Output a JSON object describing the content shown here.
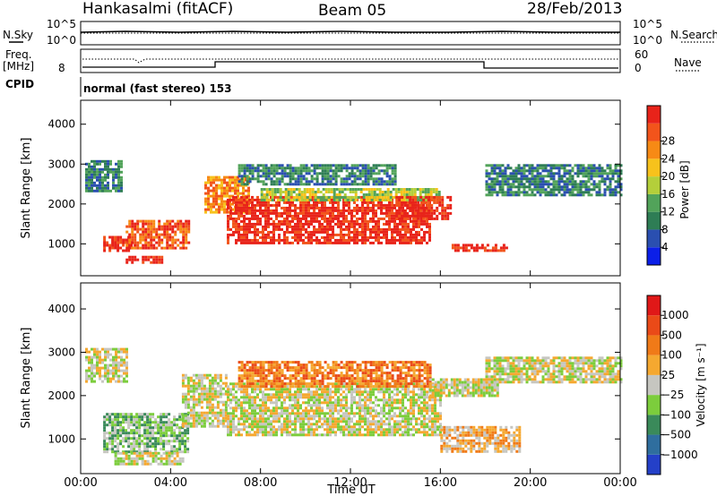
{
  "header": {
    "station": "Hankasalmi (fitACF)",
    "beam": "Beam 05",
    "date": "28/Feb/2013"
  },
  "top_panels": {
    "nsky_label": "N.Sky",
    "nsky_ticks": [
      "10^5",
      "10^0"
    ],
    "nsearch_label": "N.Search",
    "nsearch_ticks": [
      "10^5",
      "10^0"
    ],
    "freq_label": "Freq.",
    "freq_unit": "[MHz]",
    "freq_ticks": [
      "8"
    ],
    "nave_label": "Nave",
    "nave_ticks": [
      "60",
      "0"
    ],
    "cpid_label": "CPID",
    "cpid_value": "normal (fast stereo) 153"
  },
  "chart_data": [
    {
      "type": "heatmap",
      "name": "power-panel",
      "ylabel": "Slant Range [km]",
      "xlabel": "",
      "x_ticks": [
        "00:00",
        "04:00",
        "08:00",
        "12:00",
        "16:00",
        "20:00",
        "00:00"
      ],
      "y_ticks": [
        1000,
        2000,
        3000,
        4000
      ],
      "ylim": [
        200,
        4600
      ],
      "xlim_hours": [
        0,
        24
      ],
      "colorbar": {
        "label": "Power [dB]",
        "tick_labels": [
          "4",
          "8",
          "12",
          "16",
          "20",
          "24",
          "28"
        ],
        "colors": [
          "#0b1fe8",
          "#2a4fb0",
          "#2e7d55",
          "#52a35a",
          "#b4cf3a",
          "#f7c21c",
          "#f78a15",
          "#f2541b",
          "#e8231a"
        ]
      },
      "echo_regions": [
        {
          "t0": 0.2,
          "t1": 1.8,
          "r0": 2300,
          "r1": 3100,
          "level": 2
        },
        {
          "t0": 1.0,
          "t1": 2.3,
          "r0": 800,
          "r1": 1200,
          "level": 8
        },
        {
          "t0": 2.0,
          "t1": 4.8,
          "r0": 900,
          "r1": 1600,
          "level": 7
        },
        {
          "t0": 2.0,
          "t1": 3.6,
          "r0": 550,
          "r1": 700,
          "level": 8
        },
        {
          "t0": 5.5,
          "t1": 7.5,
          "r0": 1800,
          "r1": 2700,
          "level": 6
        },
        {
          "t0": 6.5,
          "t1": 15.5,
          "r0": 1000,
          "r1": 2200,
          "level": 8
        },
        {
          "t0": 8.0,
          "t1": 16.0,
          "r0": 2100,
          "r1": 2400,
          "level": 4
        },
        {
          "t0": 7.0,
          "t1": 14.0,
          "r0": 2500,
          "r1": 3000,
          "level": 2
        },
        {
          "t0": 14.0,
          "t1": 16.5,
          "r0": 1600,
          "r1": 2200,
          "level": 8
        },
        {
          "t0": 16.5,
          "t1": 19.0,
          "r0": 800,
          "r1": 1000,
          "level": 8
        },
        {
          "t0": 18.0,
          "t1": 24.0,
          "r0": 2200,
          "r1": 3000,
          "level": 2
        }
      ]
    },
    {
      "type": "heatmap",
      "name": "velocity-panel",
      "ylabel": "Slant Range [km]",
      "xlabel": "Time UT",
      "x_ticks": [
        "00:00",
        "04:00",
        "08:00",
        "12:00",
        "16:00",
        "20:00",
        "00:00"
      ],
      "y_ticks": [
        1000,
        2000,
        3000,
        4000
      ],
      "ylim": [
        200,
        4600
      ],
      "xlim_hours": [
        0,
        24
      ],
      "colorbar": {
        "label": "Velocity [m s⁻¹]",
        "tick_labels": [
          "1000",
          "500",
          "100",
          "25",
          "−25",
          "−100",
          "−500",
          "−1000"
        ],
        "colors": [
          "#2440c8",
          "#2f6e9e",
          "#3a8a5a",
          "#7ccd3c",
          "#c6c6c0",
          "#f5a830",
          "#f07a18",
          "#ea4a18",
          "#e01818"
        ]
      },
      "echo_regions": [
        {
          "t0": 0.2,
          "t1": 2.0,
          "r0": 2300,
          "r1": 3100,
          "level": 4
        },
        {
          "t0": 1.0,
          "t1": 4.8,
          "r0": 700,
          "r1": 1600,
          "level": 3
        },
        {
          "t0": 1.5,
          "t1": 4.5,
          "r0": 400,
          "r1": 700,
          "level": 4
        },
        {
          "t0": 4.5,
          "t1": 6.5,
          "r0": 1300,
          "r1": 2500,
          "level": 4
        },
        {
          "t0": 6.5,
          "t1": 16.0,
          "r0": 1100,
          "r1": 2300,
          "level": 4
        },
        {
          "t0": 7.0,
          "t1": 15.5,
          "r0": 2200,
          "r1": 2800,
          "level": 6
        },
        {
          "t0": 15.5,
          "t1": 18.5,
          "r0": 2000,
          "r1": 2400,
          "level": 4
        },
        {
          "t0": 16.0,
          "t1": 19.5,
          "r0": 700,
          "r1": 1300,
          "level": 5
        },
        {
          "t0": 18.0,
          "t1": 24.0,
          "r0": 2300,
          "r1": 2900,
          "level": 4
        }
      ]
    }
  ]
}
